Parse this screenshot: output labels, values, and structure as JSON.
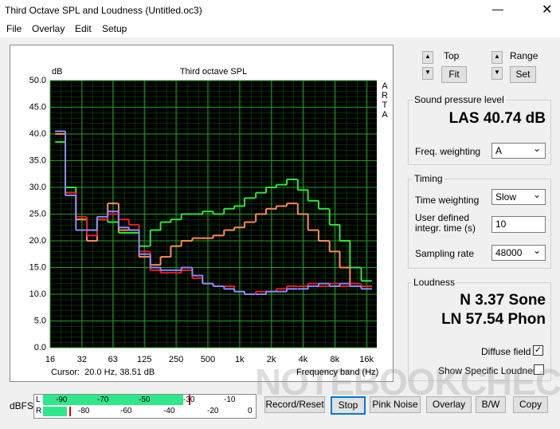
{
  "window": {
    "title": "Third Octave SPL and Loudness (Untitled.oc3)"
  },
  "menu": [
    "File",
    "Overlay",
    "Edit",
    "Setup"
  ],
  "chart_data": {
    "type": "line",
    "title": "Third octave SPL",
    "y_label": "dB",
    "x_label": "Frequency band (Hz)",
    "side_label": "ARTA",
    "cursor": "Cursor:  20.0 Hz, 38.51 dB",
    "x_scale": "log",
    "grid": true,
    "x": [
      20,
      25,
      31.5,
      40,
      50,
      63,
      80,
      100,
      125,
      160,
      200,
      250,
      315,
      400,
      500,
      630,
      800,
      1000,
      1250,
      1600,
      2000,
      2500,
      3150,
      4000,
      5000,
      6300,
      8000,
      10000,
      12500,
      16000
    ],
    "series": [
      {
        "color": "#2ee82e",
        "values": [
          38.5,
          30,
          24,
          22,
          24,
          23.5,
          21.5,
          21.5,
          19,
          22,
          23.5,
          24,
          25,
          25,
          25.5,
          25,
          26,
          26.5,
          28,
          29,
          30,
          30.5,
          31.5,
          29.5,
          27.5,
          26,
          23,
          20,
          15,
          12.5
        ]
      },
      {
        "color": "#ff8c50",
        "values": [
          40,
          29,
          24,
          20,
          24,
          27,
          22,
          22,
          17,
          15.5,
          17,
          19,
          20,
          20.5,
          20.5,
          21,
          22,
          22.5,
          23.5,
          25,
          26,
          26.5,
          27,
          25,
          22,
          20,
          18,
          15,
          11.5,
          11.5
        ]
      },
      {
        "color": "#e82020",
        "values": [
          40.5,
          29,
          24.5,
          21,
          24,
          25,
          24,
          23,
          18,
          14.5,
          14,
          14,
          14.5,
          13,
          12,
          11.5,
          11.5,
          10.5,
          10,
          10.5,
          10.5,
          11,
          11.5,
          11.5,
          12,
          11.5,
          12,
          11.5,
          12,
          11.5
        ]
      },
      {
        "color": "#8a8aff",
        "values": [
          40.5,
          28.5,
          22,
          22,
          24.5,
          25.5,
          22.5,
          22,
          17.5,
          15,
          14.5,
          14.5,
          15,
          13.5,
          12,
          11.5,
          11,
          10.5,
          10,
          10,
          10.5,
          10.5,
          11,
          11,
          11.5,
          12,
          11.5,
          12,
          11.5,
          11
        ]
      }
    ],
    "xlim": [
      16,
      20000
    ],
    "xticks": [
      16,
      32,
      63,
      125,
      250,
      500,
      {
        "value": 1000,
        "label": "1k"
      },
      {
        "value": 2000,
        "label": "2k"
      },
      {
        "value": 4000,
        "label": "4k"
      },
      {
        "value": 8000,
        "label": "8k"
      },
      {
        "value": 16000,
        "label": "16k"
      }
    ],
    "ylim": [
      0,
      50
    ],
    "yticks": [
      {
        "value": 0,
        "label": "0.0"
      },
      {
        "value": 5,
        "label": "5.0"
      },
      {
        "value": 10,
        "label": "10.0"
      },
      {
        "value": 15,
        "label": "15.0"
      },
      {
        "value": 20,
        "label": "20.0"
      },
      {
        "value": 25,
        "label": "25.0"
      },
      {
        "value": 30,
        "label": "30.0"
      },
      {
        "value": 35,
        "label": "35.0"
      },
      {
        "value": 40,
        "label": "40.0"
      },
      {
        "value": 45,
        "label": "45.0"
      },
      {
        "value": 50,
        "label": "50.0"
      }
    ]
  },
  "controls": {
    "top": "Top",
    "fit": "Fit",
    "range": "Range",
    "set": "Set"
  },
  "spl": {
    "title": "Sound pressure level",
    "reading": "LAS 40.74 dB",
    "weighting_label": "Freq. weighting",
    "weighting": "A"
  },
  "timing": {
    "title": "Timing",
    "time_weighting_label": "Time weighting",
    "time_weighting": "Slow",
    "integr_label": "User defined integr. time (s)",
    "integr": "10",
    "sampling_label": "Sampling rate",
    "sampling": "48000"
  },
  "loudness": {
    "title": "Loudness",
    "sone": "N 3.37 Sone",
    "phon": "LN 57.54 Phon",
    "diffuse": "Diffuse field",
    "specific": "Show Specific Loudness"
  },
  "meter": {
    "label": "dBFS",
    "l": "L",
    "r": "R",
    "top_scale": [
      "-90",
      "-70",
      "-50",
      "-30",
      "-10"
    ],
    "bottom_scale": [
      "-80",
      "-60",
      "-40",
      "-20",
      "0"
    ]
  },
  "buttons": [
    "Record/Reset",
    "Stop",
    "Pink Noise",
    "Overlay",
    "B/W",
    "Copy"
  ],
  "watermark": "NOTEBOOKCHECK"
}
